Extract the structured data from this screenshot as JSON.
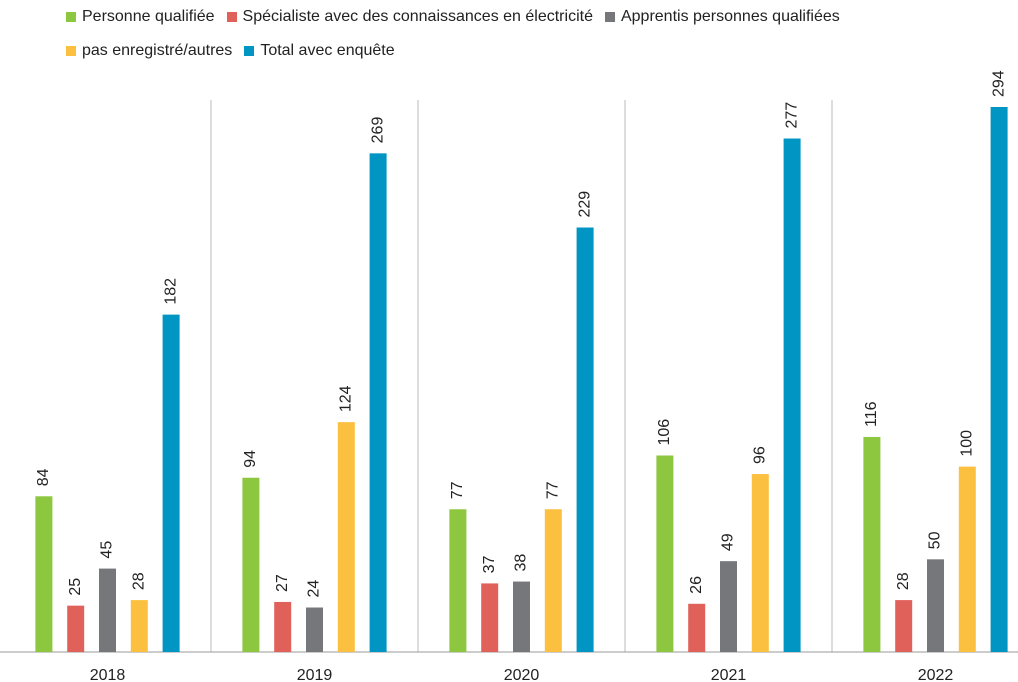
{
  "chart_data": {
    "type": "bar",
    "categories": [
      "2018",
      "2019",
      "2020",
      "2021",
      "2022"
    ],
    "series": [
      {
        "name": "Personne qualifiée",
        "color": "#8dc63f",
        "values": [
          84,
          94,
          77,
          106,
          116
        ]
      },
      {
        "name": "Spécialiste avec des connaissances en électricité",
        "color": "#e0605a",
        "values": [
          25,
          27,
          37,
          26,
          28
        ]
      },
      {
        "name": "Apprentis personnes qualifiées",
        "color": "#76777a",
        "values": [
          45,
          24,
          38,
          49,
          50
        ]
      },
      {
        "name": "pas enregistré/autres",
        "color": "#fbc040",
        "values": [
          28,
          124,
          77,
          96,
          100
        ]
      },
      {
        "name": "Total avec enquête",
        "color": "#0095c3",
        "values": [
          182,
          269,
          229,
          277,
          294
        ]
      }
    ]
  }
}
